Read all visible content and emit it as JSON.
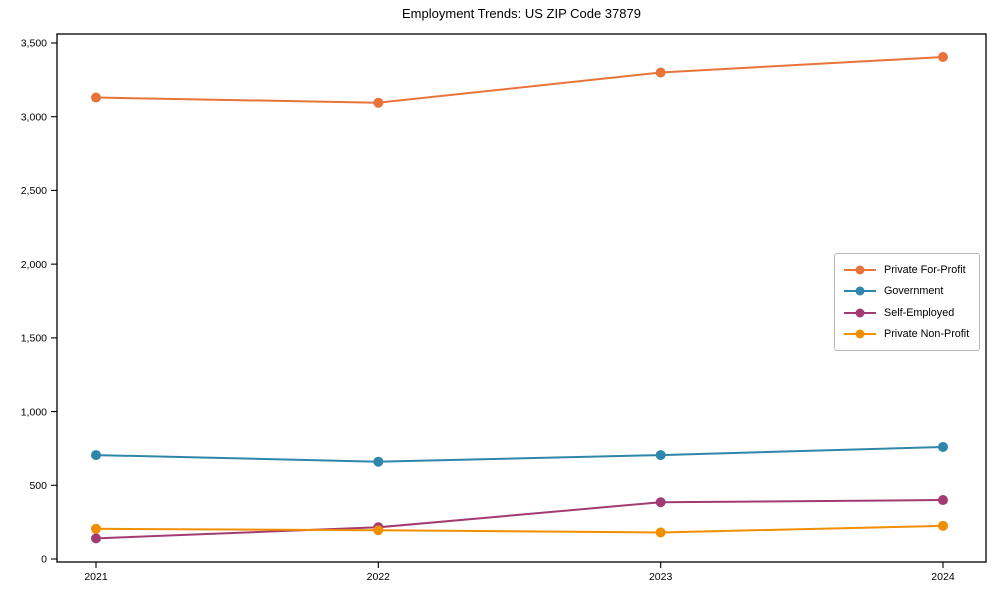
{
  "chart_data": {
    "type": "line",
    "title": "Employment Trends: US ZIP Code 37879",
    "categories": [
      "2021",
      "2022",
      "2023",
      "2024"
    ],
    "series": [
      {
        "name": "Private For-Profit",
        "color": "#E8743B",
        "values": [
          3130,
          3095,
          3300,
          3405
        ]
      },
      {
        "name": "Government",
        "color": "#2E86AB",
        "values": [
          705,
          660,
          705,
          760
        ]
      },
      {
        "name": "Self-Employed",
        "color": "#A23B72",
        "values": [
          140,
          215,
          385,
          400
        ]
      },
      {
        "name": "Private Non-Profit",
        "color": "#F18F01",
        "values": [
          205,
          195,
          180,
          225
        ]
      }
    ],
    "xlabel": "",
    "ylabel": "",
    "ylim": [
      0,
      3500
    ],
    "yticks": [
      0,
      500,
      1000,
      1500,
      2000,
      2500,
      3000,
      3500
    ],
    "ytick_labels": [
      "0",
      "500",
      "1,000",
      "1,500",
      "2,000",
      "2,500",
      "3,000",
      "3,500"
    ],
    "grid": false,
    "legend_position": "right-middle",
    "marker": "circle",
    "axis_color": "#000000"
  }
}
